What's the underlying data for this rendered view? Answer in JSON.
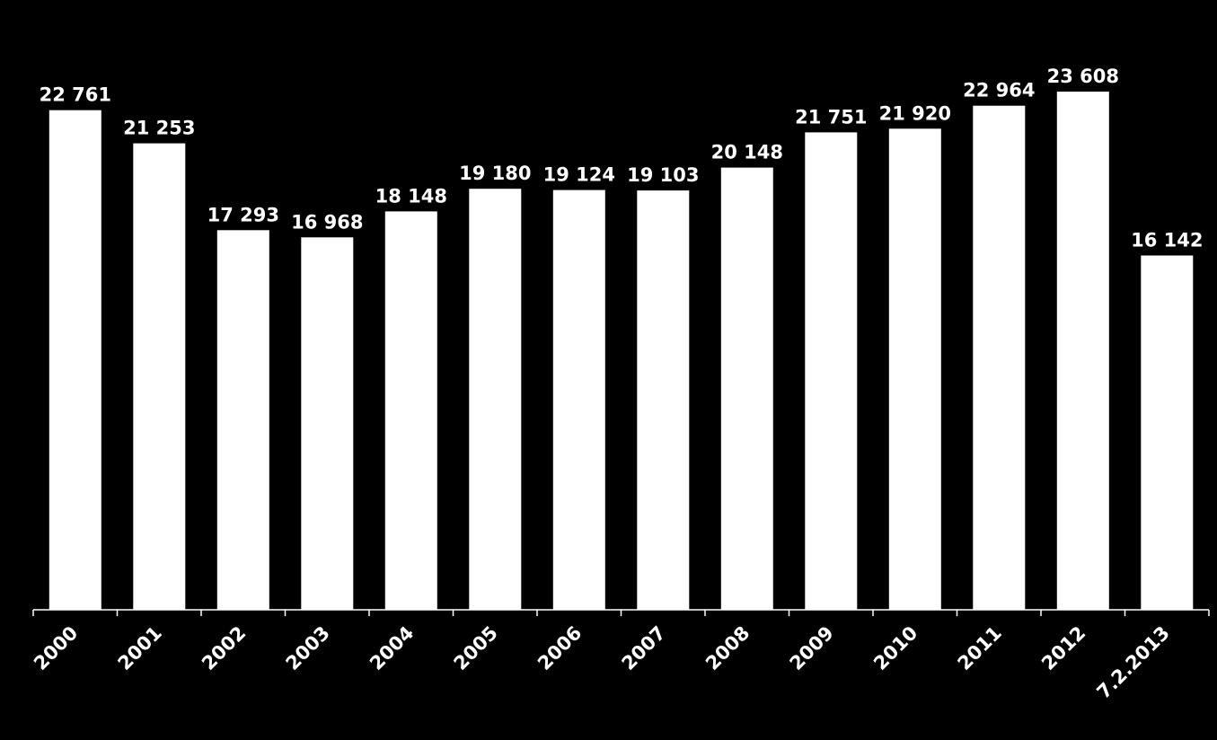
{
  "chart_data": {
    "type": "bar",
    "title": "",
    "xlabel": "",
    "ylabel": "",
    "categories": [
      "2000",
      "2001",
      "2002",
      "2003",
      "2004",
      "2005",
      "2006",
      "2007",
      "2008",
      "2009",
      "2010",
      "2011",
      "2012",
      "7.2.2013"
    ],
    "values": [
      22761,
      21253,
      17293,
      16968,
      18148,
      19180,
      19124,
      19103,
      20148,
      21751,
      21920,
      22964,
      23608,
      16142
    ],
    "value_labels": [
      "22 761",
      "21 253",
      "17 293",
      "16 968",
      "18 148",
      "19 180",
      "19 124",
      "19 103",
      "20 148",
      "21 751",
      "21 920",
      "22 964",
      "23 608",
      "16 142"
    ],
    "ylim": [
      0,
      25000
    ],
    "grid": false,
    "legend": "none",
    "colors": {
      "background": "#000000",
      "bar": "#ffffff",
      "text": "#ffffff"
    }
  }
}
